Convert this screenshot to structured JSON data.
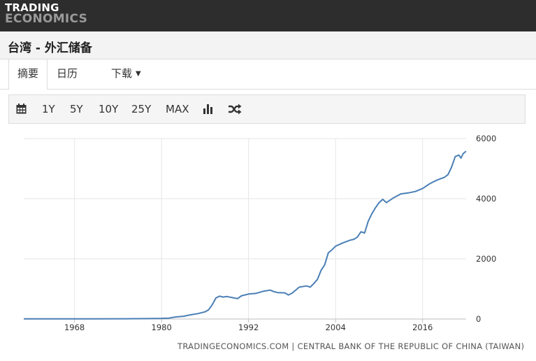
{
  "header": {
    "logo_line1": "TRADING",
    "logo_line2": "ECONOMICS"
  },
  "page": {
    "title": "台湾 - 外汇储备"
  },
  "tabs": [
    {
      "label": "摘要",
      "active": true
    },
    {
      "label": "日历",
      "active": false
    },
    {
      "label": "下载",
      "active": false,
      "dropdown": true
    }
  ],
  "toolbar": {
    "icons": [
      "calendar-icon",
      "bar-chart-icon",
      "shuffle-icon"
    ],
    "ranges": [
      "1Y",
      "5Y",
      "10Y",
      "25Y",
      "MAX"
    ]
  },
  "source": "TRADINGECONOMICS.COM | CENTRAL BANK OF THE REPUBLIC OF CHINA (TAIWAN)",
  "colors": {
    "topbar": "#2d2d2d",
    "line": "#4a7fb5",
    "grid": "#e6e6e6"
  },
  "chart_data": {
    "type": "line",
    "title": "",
    "xlabel": "",
    "ylabel": "",
    "xlim": [
      1961,
      2022
    ],
    "ylim": [
      0,
      6000
    ],
    "x_ticks": [
      1968,
      1980,
      1992,
      2004,
      2016
    ],
    "y_ticks": [
      0,
      2000,
      4000,
      6000
    ],
    "grid": true,
    "y_axis_side": "right",
    "series": [
      {
        "name": "",
        "x": [
          1961,
          1965,
          1970,
          1975,
          1978,
          1980,
          1981,
          1982,
          1983,
          1984,
          1985,
          1986,
          1986.5,
          1987,
          1987.5,
          1988,
          1988.5,
          1989,
          1990,
          1990.5,
          1991,
          1992,
          1993,
          1994,
          1995,
          1995.5,
          1996,
          1997,
          1997.5,
          1998,
          1999,
          2000,
          2000.5,
          2001,
          2001.5,
          2002,
          2002.5,
          2003,
          2003.5,
          2004,
          2005,
          2006,
          2006.5,
          2007,
          2007.5,
          2008,
          2008.5,
          2009,
          2009.5,
          2010,
          2010.5,
          2011,
          2011.5,
          2012,
          2013,
          2014,
          2015,
          2016,
          2017,
          2017.5,
          2018,
          2019,
          2019.5,
          2020,
          2020.5,
          2021,
          2021.3,
          2021.6,
          2022
        ],
        "values": [
          5,
          6,
          8,
          10,
          14,
          22,
          30,
          70,
          90,
          140,
          180,
          240,
          310,
          480,
          700,
          760,
          730,
          750,
          700,
          680,
          770,
          830,
          850,
          920,
          960,
          910,
          880,
          870,
          800,
          860,
          1060,
          1100,
          1060,
          1180,
          1320,
          1620,
          1800,
          2200,
          2300,
          2420,
          2530,
          2620,
          2650,
          2720,
          2900,
          2860,
          3250,
          3500,
          3700,
          3870,
          3980,
          3870,
          3950,
          4030,
          4160,
          4190,
          4240,
          4340,
          4500,
          4560,
          4620,
          4710,
          4800,
          5050,
          5400,
          5450,
          5350,
          5500,
          5580
        ]
      }
    ]
  }
}
